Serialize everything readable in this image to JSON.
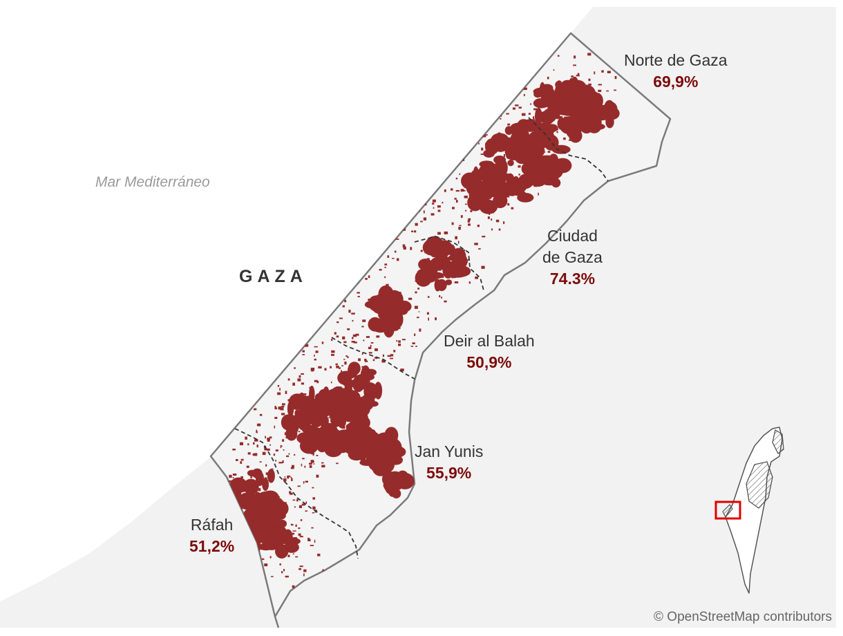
{
  "map": {
    "sea_label": "Mar Mediterráneo",
    "territory_label": "GAZA",
    "attribution": "© OpenStreetMap contributors",
    "colors": {
      "water": "#ffffff",
      "land": "#f2f2f2",
      "border": "#7a7a7a",
      "damage": "#962b2b",
      "percent_text": "#7d0a0a",
      "inset_highlight": "#e00000"
    },
    "governorates": [
      {
        "name_lines": [
          "Norte de Gaza"
        ],
        "percent": "69,9%"
      },
      {
        "name_lines": [
          "Ciudad",
          "de Gaza"
        ],
        "percent": "74.3%"
      },
      {
        "name_lines": [
          "Deir al Balah"
        ],
        "percent": "50,9%"
      },
      {
        "name_lines": [
          "Jan Yunis"
        ],
        "percent": "55,9%"
      },
      {
        "name_lines": [
          "Ráfah"
        ],
        "percent": "51,2%"
      }
    ]
  }
}
